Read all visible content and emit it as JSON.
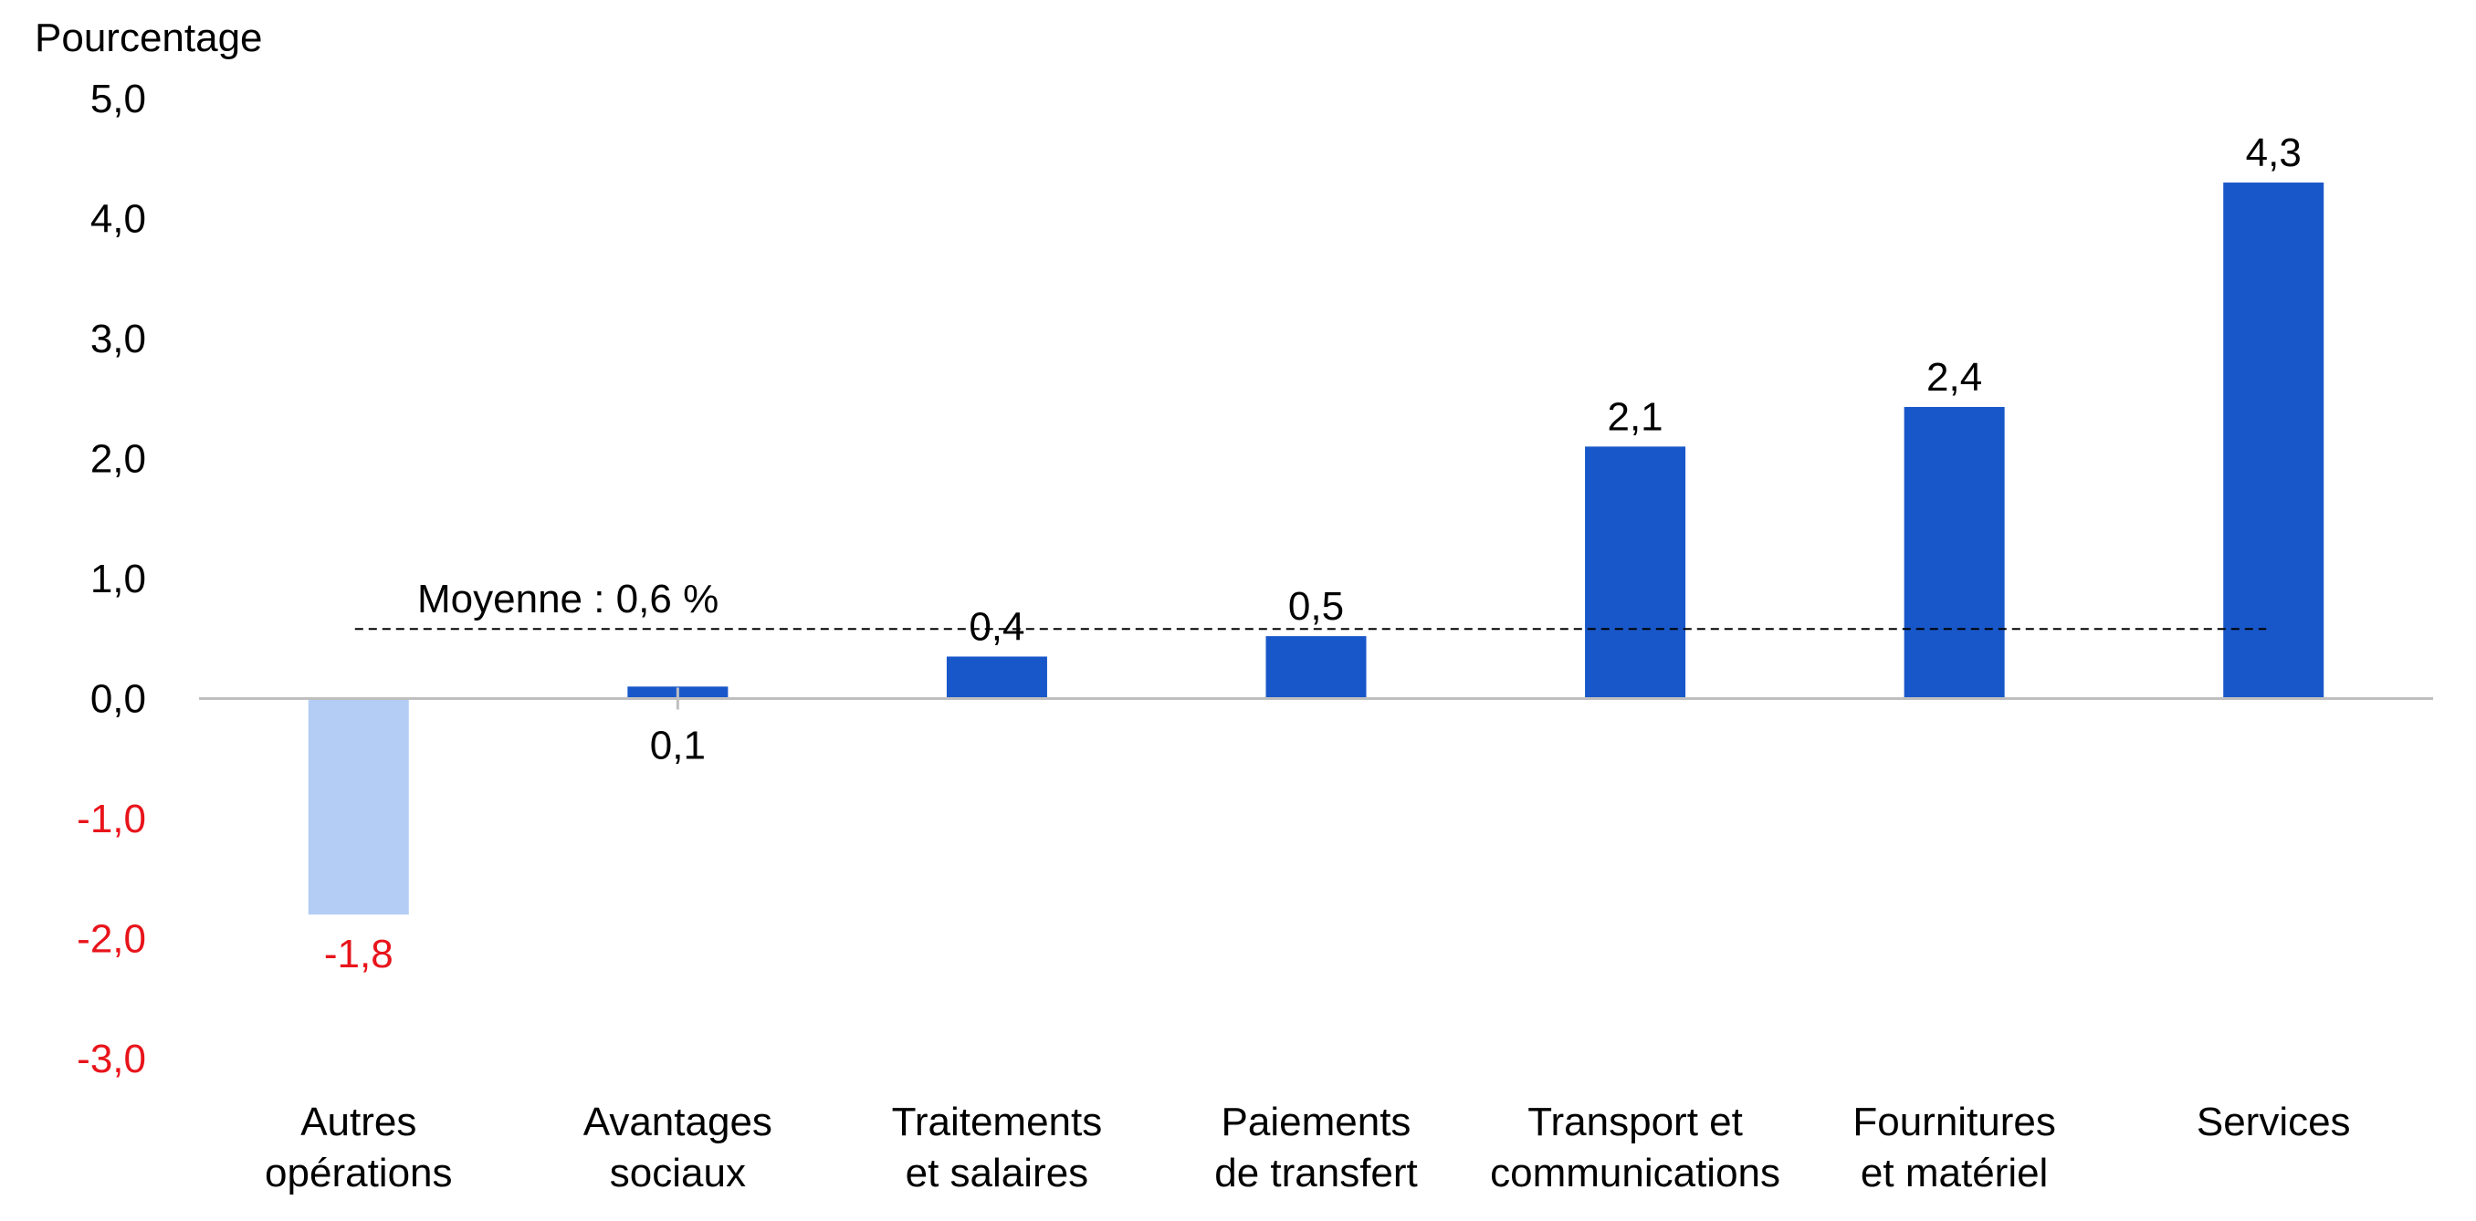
{
  "chart_data": {
    "type": "bar",
    "ylabel": "Pourcentage",
    "ylim": [
      -3,
      5
    ],
    "yticks": [
      {
        "value": 5,
        "label": "5,0"
      },
      {
        "value": 4,
        "label": "4,0"
      },
      {
        "value": 3,
        "label": "3,0"
      },
      {
        "value": 2,
        "label": "2,0"
      },
      {
        "value": 1,
        "label": "1,0"
      },
      {
        "value": 0,
        "label": "0,0"
      },
      {
        "value": -1,
        "label": "-1,0"
      },
      {
        "value": -2,
        "label": "-2,0"
      },
      {
        "value": -3,
        "label": "-3,0"
      }
    ],
    "categories": [
      [
        "Autres",
        "opérations"
      ],
      [
        "Avantages",
        "sociaux"
      ],
      [
        "Traitements",
        "et salaires"
      ],
      [
        "Paiements",
        "de transfert"
      ],
      [
        "Transport et",
        "communications"
      ],
      [
        "Fournitures",
        "et matériel"
      ],
      [
        "Services"
      ]
    ],
    "values": [
      -1.8,
      0.1,
      0.35,
      0.52,
      2.1,
      2.43,
      4.3
    ],
    "value_labels": [
      "-1,8",
      "0,1",
      "0,4",
      "0,5",
      "2,1",
      "2,4",
      "4,3"
    ],
    "average": {
      "value": 0.58,
      "label": "Moyenne : 0,6 %"
    },
    "grid": false,
    "colors": {
      "positive_bar": "#1857C9",
      "negative_bar": "#B3CDF5",
      "negative_text": "#E8141B",
      "text": "#000000",
      "zero_line": "#BFBFBF",
      "average_line": "#000000"
    }
  }
}
